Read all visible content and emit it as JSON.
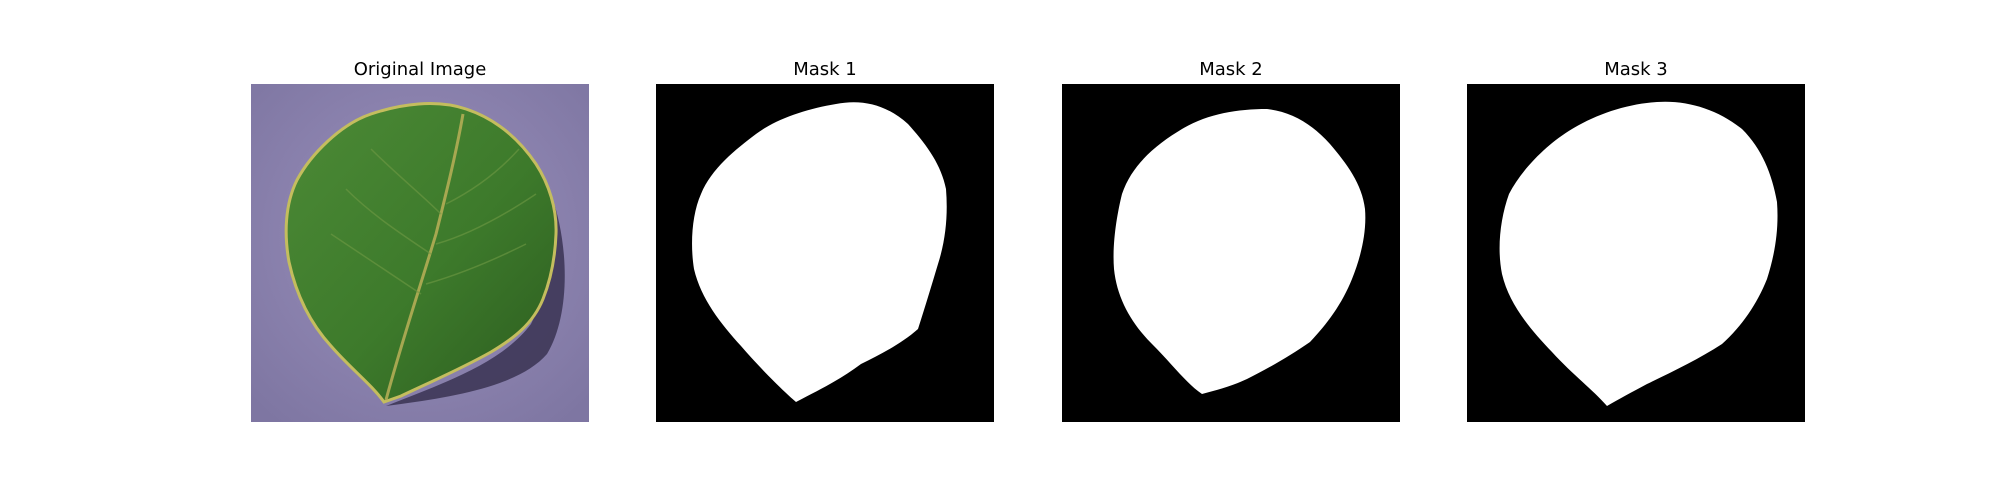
{
  "panels": [
    {
      "title": "Original Image"
    },
    {
      "title": "Mask 1"
    },
    {
      "title": "Mask 2"
    },
    {
      "title": "Mask 3"
    }
  ],
  "colors": {
    "background_purple": "#8f86b0",
    "leaf_green": "#3f7a2c",
    "leaf_dark": "#2a5a1e",
    "leaf_edge": "#b9b55a",
    "mask_background": "#000000",
    "mask_foreground": "#ffffff"
  }
}
